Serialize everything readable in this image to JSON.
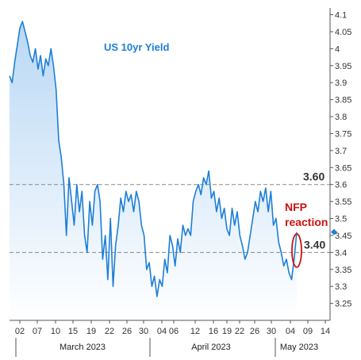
{
  "chart_data": {
    "type": "area",
    "title": "US 10yr Yield",
    "ylim": [
      3.2,
      4.12
    ],
    "y_ticks": [
      "4.1",
      "4.05",
      "4",
      "3.95",
      "3.9",
      "3.85",
      "3.8",
      "3.75",
      "3.7",
      "3.65",
      "3.6",
      "3.55",
      "3.5",
      "3.45",
      "3.4",
      "3.35",
      "3.3",
      "3.25"
    ],
    "x_ticks": [
      "02",
      "07",
      "10",
      "15",
      "19",
      "22",
      "26",
      "30",
      "04",
      "06",
      "12",
      "16",
      "19",
      "22",
      "26",
      "30",
      "04",
      "09",
      "14"
    ],
    "months": [
      "March 2023",
      "April 2023",
      "May 2023"
    ],
    "levels": [
      {
        "value": 3.6,
        "label": "3.60"
      },
      {
        "value": 3.4,
        "label": "3.40"
      }
    ],
    "annotation": "NFP\nreaction",
    "annotation_lines": [
      "NFP",
      "reaction"
    ],
    "colors": {
      "line": "#1e7fd6",
      "fill_top": "#b9d8f5",
      "fill_bottom": "#ffffff",
      "level": "#888888",
      "annotation": "#cc1111",
      "axis": "#555555"
    },
    "series": [
      {
        "values": [
          3.92,
          3.9,
          3.96,
          4.01,
          4.06,
          4.08,
          4.05,
          4.02,
          3.98,
          3.96,
          4.0,
          3.94,
          3.98,
          3.92,
          3.97,
          3.95,
          4.0,
          3.95,
          3.88,
          3.73,
          3.68,
          3.6,
          3.45,
          3.62,
          3.55,
          3.48,
          3.6,
          3.52,
          3.58,
          3.45,
          3.4,
          3.55,
          3.48,
          3.58,
          3.6,
          3.55,
          3.38,
          3.45,
          3.32,
          3.5,
          3.3,
          3.42,
          3.48,
          3.56,
          3.52,
          3.58,
          3.55,
          3.57,
          3.52,
          3.58,
          3.55,
          3.48,
          3.45,
          3.35,
          3.37,
          3.3,
          3.33,
          3.27,
          3.32,
          3.3,
          3.38,
          3.34,
          3.45,
          3.42,
          3.36,
          3.44,
          3.4,
          3.48,
          3.45,
          3.47,
          3.45,
          3.55,
          3.58,
          3.6,
          3.57,
          3.62,
          3.6,
          3.64,
          3.56,
          3.58,
          3.52,
          3.56,
          3.5,
          3.53,
          3.47,
          3.45,
          3.53,
          3.48,
          3.52,
          3.45,
          3.42,
          3.38,
          3.4,
          3.45,
          3.5,
          3.55,
          3.52,
          3.58,
          3.55,
          3.59,
          3.52,
          3.58,
          3.48,
          3.5,
          3.43,
          3.4,
          3.36,
          3.38,
          3.34,
          3.32,
          3.38,
          3.46
        ],
        "last_value": 3.46
      }
    ],
    "grid": false,
    "legend": "none"
  }
}
